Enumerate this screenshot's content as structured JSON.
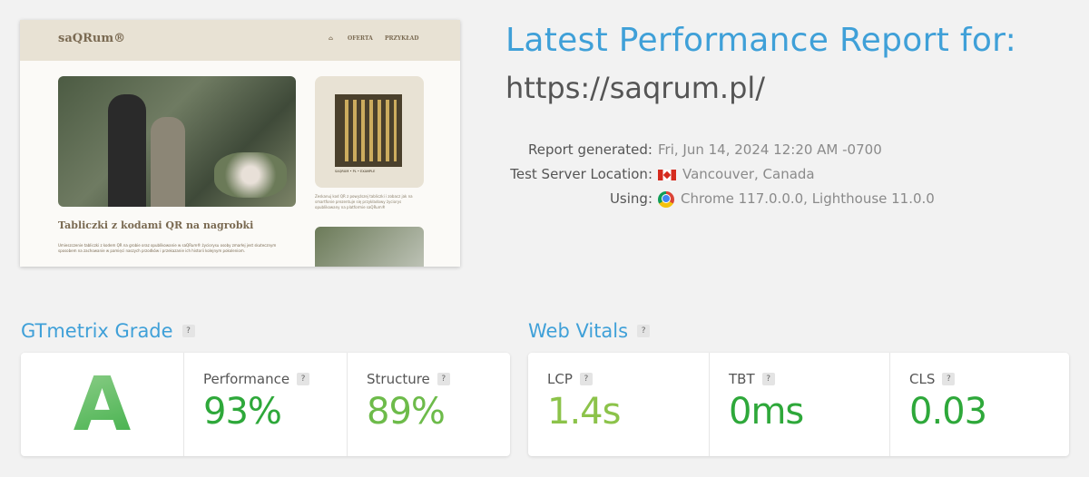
{
  "preview": {
    "logo": "saQRum®",
    "nav": [
      "⌂",
      "OFERTA",
      "PRZYKŁAD"
    ],
    "heading": "Tabliczki z kodami QR na nagrobki",
    "paragraph": "Umieszczenie tabliczki z kodem QR na grobie oraz opublikowanie w saQRum® życiorysu osoby zmarłej jest skutecznym sposobem na zachowanie w pamięci naszych przodków i przekazanie ich historii kolejnym pokoleniom.",
    "side_text": "Zeskanuj kod QR z powyższej tabliczki i zobacz jak na smartfonie prezentuje się przykładowy życiorys opublikowany na platformie saQRum®",
    "qr_caption": "SAQRUM • PL • EXAMPLE"
  },
  "header": {
    "title": "Latest Performance Report for:",
    "url": "https://saqrum.pl/"
  },
  "meta": [
    {
      "label": "Report generated:",
      "value": "Fri, Jun 14, 2024 12:20 AM -0700",
      "icon": ""
    },
    {
      "label": "Test Server Location:",
      "value": "Vancouver, Canada",
      "icon": "canada-flag-icon"
    },
    {
      "label": "Using:",
      "value": "Chrome 117.0.0.0, Lighthouse 11.0.0",
      "icon": "chrome-icon"
    }
  ],
  "grade": {
    "title": "GTmetrix Grade",
    "help": "?",
    "letter": "A",
    "metrics": [
      {
        "label": "Performance",
        "value": "93%",
        "color": "#2ea83a"
      },
      {
        "label": "Structure",
        "value": "89%",
        "color": "#6dbb4a"
      }
    ]
  },
  "vitals": {
    "title": "Web Vitals",
    "help": "?",
    "metrics": [
      {
        "label": "LCP",
        "value": "1.4s",
        "color": "#8cc34a"
      },
      {
        "label": "TBT",
        "value": "0ms",
        "color": "#2ea83a"
      },
      {
        "label": "CLS",
        "value": "0.03",
        "color": "#2ea83a"
      }
    ]
  }
}
